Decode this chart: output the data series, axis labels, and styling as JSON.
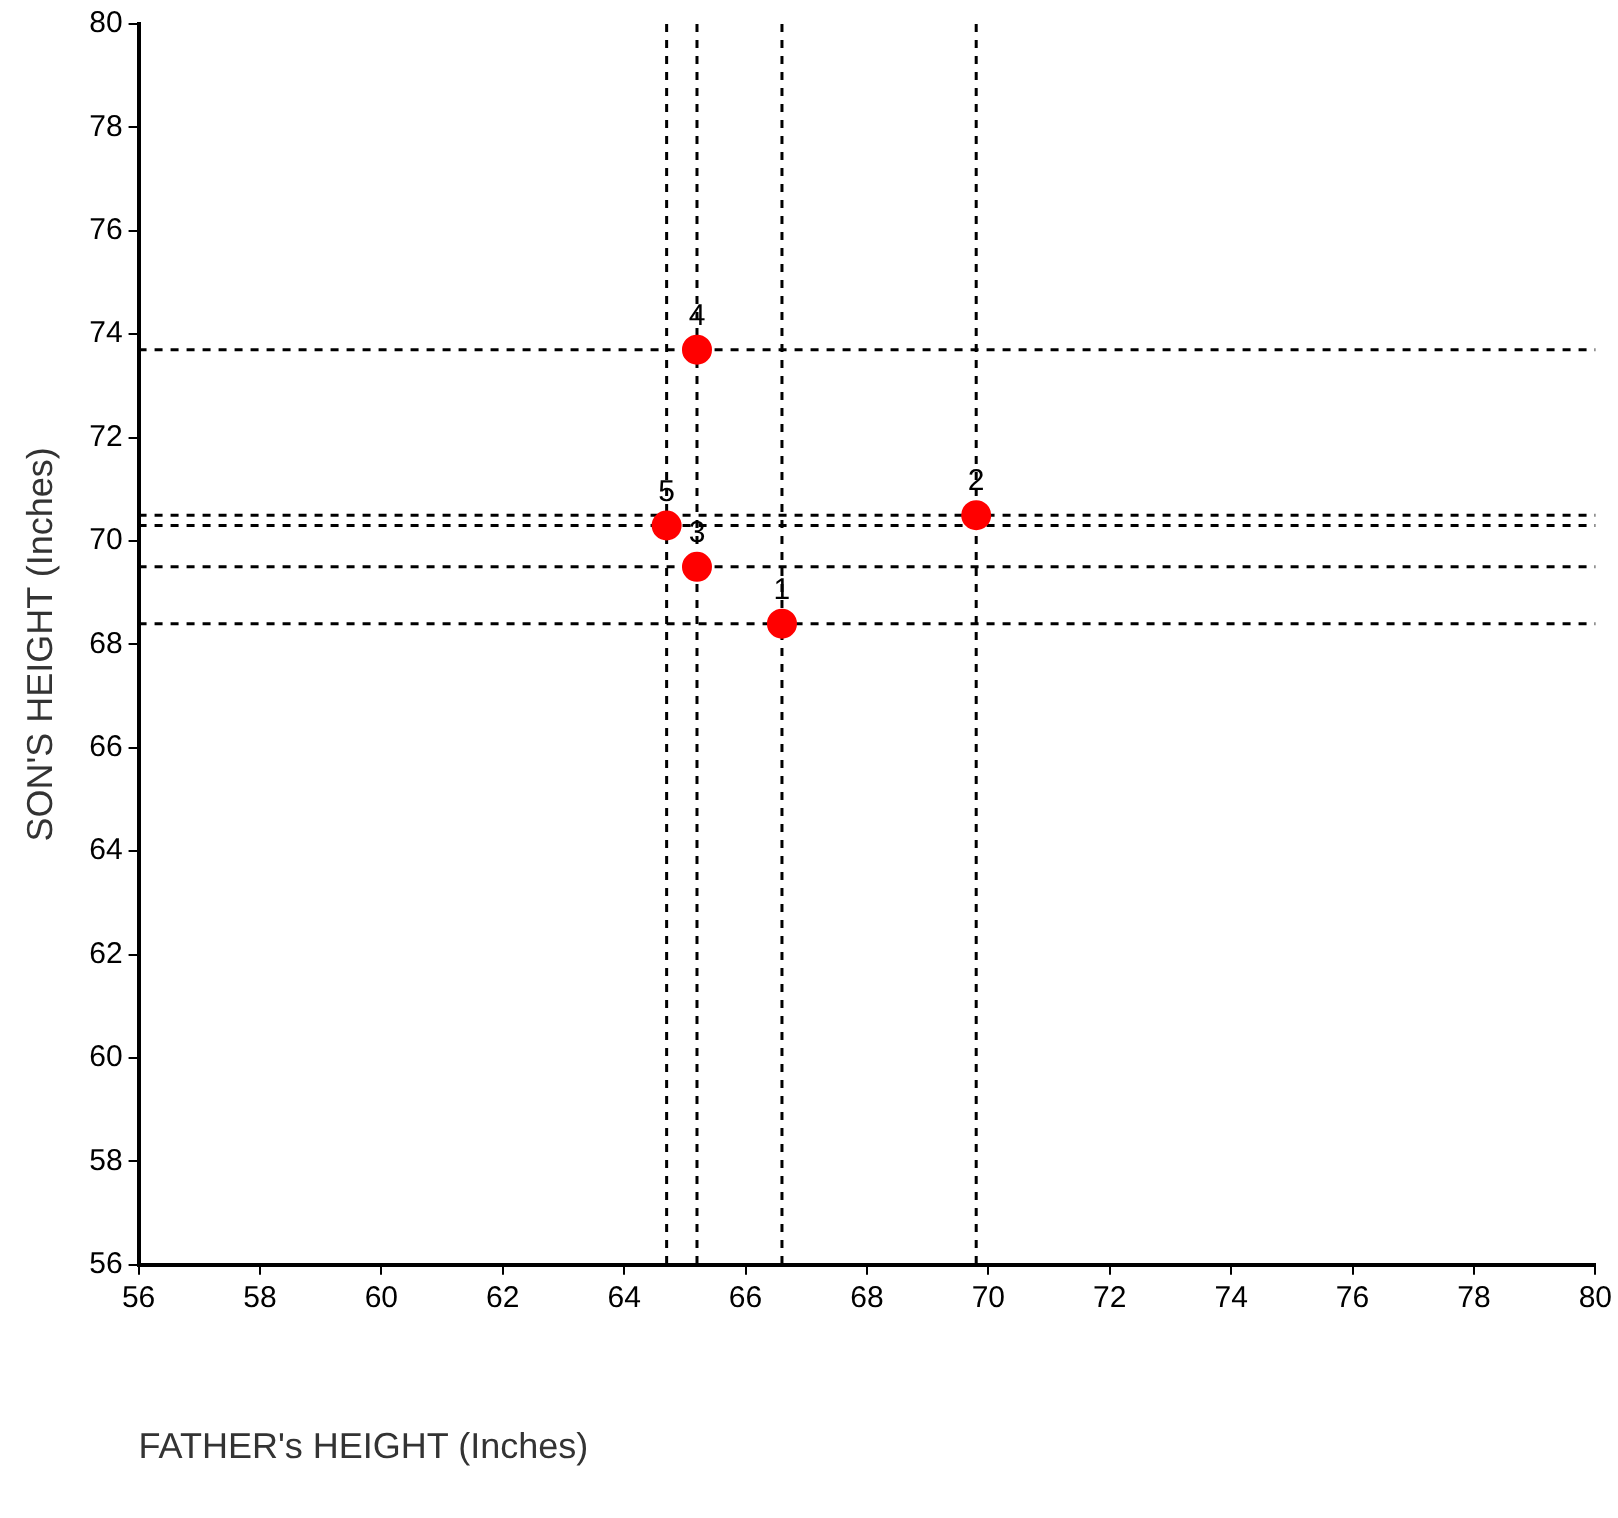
{
  "chart_data": {
    "type": "scatter",
    "xlabel": "FATHER's HEIGHT (Inches)",
    "ylabel": "SON'S HEIGHT (Inches)",
    "series": [
      {
        "color": "#ff0000",
        "x": [
          66.6,
          69.8,
          65.2,
          65.2,
          64.7
        ],
        "values": [
          68.4,
          70.5,
          69.5,
          73.7,
          70.3
        ]
      }
    ],
    "annotations": [
      {
        "text": "1",
        "x": 66.6,
        "y": 68.4
      },
      {
        "text": "2",
        "x": 69.8,
        "y": 70.5
      },
      {
        "text": "3",
        "x": 65.2,
        "y": 69.5
      },
      {
        "text": "4",
        "x": 65.2,
        "y": 73.7
      },
      {
        "text": "5",
        "x": 64.7,
        "y": 70.3
      }
    ],
    "xlim": [
      56,
      80
    ],
    "xticks": [
      56,
      58,
      60,
      62,
      64,
      66,
      68,
      70,
      72,
      74,
      76,
      78,
      80
    ],
    "ylim": [
      56,
      80
    ],
    "yticks": [
      56,
      58,
      60,
      62,
      64,
      66,
      68,
      70,
      72,
      74,
      76,
      78,
      80
    ],
    "ref_lines": [
      {
        "axis": "x",
        "value": 66.6,
        "line_style": "dashed",
        "color": "#000000"
      },
      {
        "axis": "x",
        "value": 69.8,
        "line_style": "dashed",
        "color": "#000000"
      },
      {
        "axis": "x",
        "value": 65.2,
        "line_style": "dashed",
        "color": "#000000"
      },
      {
        "axis": "x",
        "value": 64.7,
        "line_style": "dashed",
        "color": "#000000"
      },
      {
        "axis": "y",
        "value": 68.4,
        "line_style": "dashed",
        "color": "#000000"
      },
      {
        "axis": "y",
        "value": 70.5,
        "line_style": "dashed",
        "color": "#000000"
      },
      {
        "axis": "y",
        "value": 69.5,
        "line_style": "dashed",
        "color": "#000000"
      },
      {
        "axis": "y",
        "value": 73.7,
        "line_style": "dashed",
        "color": "#000000"
      },
      {
        "axis": "y",
        "value": 70.3,
        "line_style": "dashed",
        "color": "#000000"
      }
    ],
    "grid": false,
    "legend": false,
    "marker": "circle"
  }
}
